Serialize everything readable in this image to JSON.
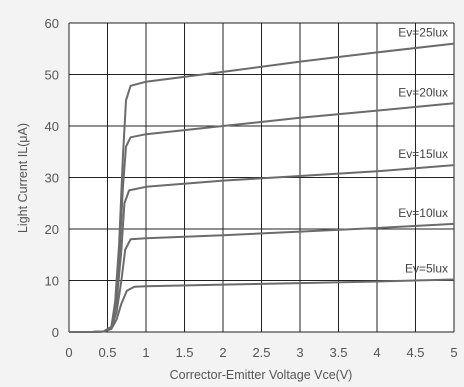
{
  "chart_data": {
    "type": "line",
    "xlabel": "Corrector-Emitter Voltage Vce(V)",
    "ylabel": "Light Current IL(μA)",
    "xlim": [
      0,
      5
    ],
    "ylim": [
      0,
      60
    ],
    "xticks": [
      0,
      0.5,
      1,
      1.5,
      2,
      2.5,
      3,
      3.5,
      4,
      4.5,
      5
    ],
    "xtick_labels": [
      "0",
      "0.5",
      "1",
      "1.5",
      "2",
      "2.5",
      "3",
      "3.5",
      "4",
      "4.5",
      "5"
    ],
    "yticks": [
      0,
      10,
      20,
      30,
      40,
      50,
      60
    ],
    "ytick_labels": [
      "0",
      "10",
      "20",
      "30",
      "40",
      "50",
      "60"
    ],
    "grid": true,
    "series": [
      {
        "name": "Ev=5lux",
        "x": [
          0,
          0.3,
          0.45,
          0.55,
          0.62,
          0.68,
          0.75,
          0.85,
          1,
          2,
          3,
          4,
          5
        ],
        "y": [
          0,
          0,
          0.1,
          0.6,
          2.5,
          5.5,
          8.0,
          8.8,
          8.9,
          9.2,
          9.5,
          9.8,
          10.2
        ]
      },
      {
        "name": "Ev=10lux",
        "x": [
          0,
          0.3,
          0.45,
          0.55,
          0.62,
          0.68,
          0.73,
          0.8,
          1,
          2,
          3,
          4,
          5
        ],
        "y": [
          0,
          0,
          0.1,
          0.8,
          4,
          10,
          16,
          18,
          18.2,
          18.8,
          19.5,
          20.2,
          21
        ]
      },
      {
        "name": "Ev=15lux",
        "x": [
          0,
          0.3,
          0.45,
          0.55,
          0.62,
          0.68,
          0.72,
          0.78,
          1,
          2,
          3,
          4,
          5
        ],
        "y": [
          0,
          0,
          0.1,
          1,
          6,
          16,
          25,
          27.5,
          28.2,
          29.4,
          30.3,
          31.2,
          32.4
        ]
      },
      {
        "name": "Ev=20lux",
        "x": [
          0,
          0.3,
          0.45,
          0.55,
          0.6,
          0.65,
          0.7,
          0.74,
          0.8,
          1,
          2,
          3,
          4,
          5
        ],
        "y": [
          0,
          0,
          0.1,
          1,
          5,
          14,
          28,
          36,
          37.8,
          38.4,
          40,
          41.6,
          43,
          44.4
        ]
      },
      {
        "name": "Ev=25lux",
        "x": [
          0,
          0.3,
          0.45,
          0.55,
          0.6,
          0.65,
          0.7,
          0.74,
          0.8,
          1,
          2,
          3,
          4,
          5
        ],
        "y": [
          0,
          0,
          0.1,
          1,
          6,
          17,
          34,
          45,
          47.8,
          48.6,
          50.5,
          52.5,
          54.3,
          56
        ]
      }
    ]
  }
}
